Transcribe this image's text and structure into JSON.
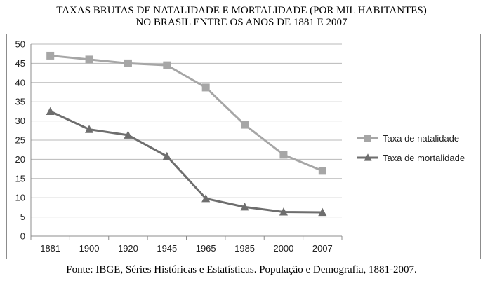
{
  "title_line1": "TAXAS BRUTAS DE NATALIDADE E MORTALIDADE (POR MIL HABITANTES)",
  "title_line2": "NO BRASIL ENTRE OS ANOS DE 1881 E 2007",
  "source": "Fonte: IBGE, Séries Históricas e Estatísticas. População e Demografia, 1881-2007.",
  "chart_data": {
    "type": "line",
    "title": "TAXAS BRUTAS DE NATALIDADE E MORTALIDADE (POR MIL HABITANTES) NO BRASIL ENTRE OS ANOS DE 1881 E 2007",
    "categories": [
      "1881",
      "1900",
      "1920",
      "1945",
      "1965",
      "1985",
      "2000",
      "2007"
    ],
    "ylim": [
      0,
      50
    ],
    "yticks": [
      "0",
      "5",
      "10",
      "15",
      "20",
      "25",
      "30",
      "35",
      "40",
      "45",
      "50"
    ],
    "grid": "horizontal",
    "legend": "right",
    "series": [
      {
        "name": "Taxa de natalidade",
        "values": [
          47,
          46,
          45,
          44.5,
          38.7,
          29,
          21.2,
          17
        ],
        "color": "#a6a6a6",
        "marker": "square"
      },
      {
        "name": "Taxa de mortalidade",
        "values": [
          32.5,
          27.8,
          26.3,
          20.8,
          9.8,
          7.6,
          6.3,
          6.2
        ],
        "color": "#6e6e6e",
        "marker": "triangle"
      }
    ]
  }
}
